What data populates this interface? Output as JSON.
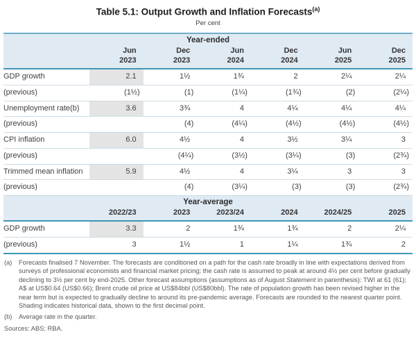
{
  "page": {
    "title": "Table 5.1: Output Growth and Inflation Forecasts",
    "title_superscript": "(a)",
    "subtitle": "Per cent"
  },
  "colors": {
    "accent_border": "#3e96ba",
    "band_background": "#dfeaf2",
    "shaded_cell": "#e4e4e4",
    "row_separator": "#ccdae3"
  },
  "year_ended": {
    "band_label": "Year-ended",
    "columns": [
      [
        "Jun",
        "2023"
      ],
      [
        "Dec",
        "2023"
      ],
      [
        "Jun",
        "2024"
      ],
      [
        "Dec",
        "2024"
      ],
      [
        "Jun",
        "2025"
      ],
      [
        "Dec",
        "2025"
      ]
    ],
    "rows": [
      {
        "label": "GDP growth",
        "shaded": true,
        "values": [
          "2.1",
          "1½",
          "1¾",
          "2",
          "2¼",
          "2¼"
        ]
      },
      {
        "label": "(previous)",
        "shaded": false,
        "values": [
          "(1½)",
          "(1)",
          "(1¼)",
          "(1¾)",
          "(2)",
          "(2¼)"
        ]
      },
      {
        "label": "Unemployment rate(b)",
        "shaded": true,
        "values": [
          "3.6",
          "3¾",
          "4",
          "4¼",
          "4¼",
          "4¼"
        ]
      },
      {
        "label": "(previous)",
        "shaded": false,
        "values": [
          "",
          "(4)",
          "(4¼)",
          "(4½)",
          "(4½)",
          "(4½)"
        ]
      },
      {
        "label": "CPI inflation",
        "shaded": true,
        "values": [
          "6.0",
          "4½",
          "4",
          "3½",
          "3¼",
          "3"
        ]
      },
      {
        "label": "(previous)",
        "shaded": false,
        "values": [
          "",
          "(4¼)",
          "(3½)",
          "(3¼)",
          "(3)",
          "(2¾)"
        ]
      },
      {
        "label": "Trimmed mean inflation",
        "shaded": true,
        "values": [
          "5.9",
          "4½",
          "4",
          "3¼",
          "3",
          "3"
        ]
      },
      {
        "label": "(previous)",
        "shaded": false,
        "values": [
          "",
          "(4)",
          "(3¼)",
          "(3)",
          "(3)",
          "(2¾)"
        ]
      }
    ]
  },
  "year_average": {
    "band_label": "Year-average",
    "columns": [
      "2022/23",
      "2023",
      "2023/24",
      "2024",
      "2024/25",
      "2025"
    ],
    "rows": [
      {
        "label": "GDP growth",
        "shaded": true,
        "values": [
          "3.3",
          "2",
          "1¾",
          "1¾",
          "2",
          "2¼"
        ]
      },
      {
        "label": "(previous)",
        "shaded": false,
        "values": [
          "3",
          "1½",
          "1",
          "1¼",
          "1¾",
          "2"
        ]
      }
    ]
  },
  "footnotes": {
    "a_marker": "(a)",
    "a_text_before": "Forecasts finalised 7 November. The forecasts are conditioned on a path for the cash rate broadly in line with expectations derived from surveys of professional economists and financial market pricing; the cash rate is assumed to peak at around 4½ per cent before gradually declining to 3½ per cent by end-2025. Other forecast assumptions (assumptions as of August ",
    "a_italic": "Statement",
    "a_text_after": " in parenthesis): TWI at 61 (61); A$ at US$0.64 (US$0.66); Brent crude oil price at US$84bbl (US$80bbl). The rate of population growth has been revised higher in the near term but is expected to gradually decline to around its pre-pandemic average. Forecasts are rounded to the nearest quarter point. Shading indicates historical data, shown to the first decimal point.",
    "b_marker": "(b)",
    "b_text": "Average rate in the quarter.",
    "sources": "Sources: ABS; RBA."
  }
}
